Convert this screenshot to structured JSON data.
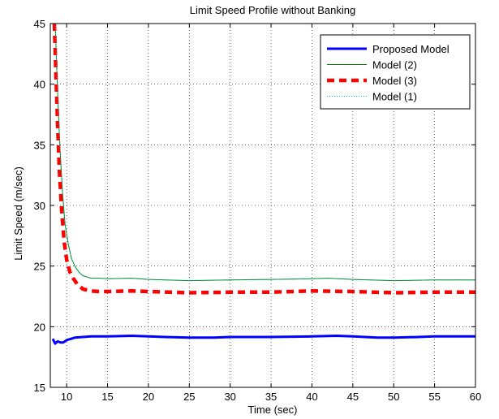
{
  "chart_data": {
    "type": "line",
    "title": "Limit Speed Profile without Banking",
    "xlabel": "Time (sec)",
    "ylabel": "Limit Speed (m/sec)",
    "xlim": [
      8,
      60
    ],
    "ylim": [
      15,
      45
    ],
    "xticks": [
      "10",
      "15",
      "20",
      "25",
      "30",
      "35",
      "40",
      "45",
      "50",
      "55",
      "60"
    ],
    "yticks": [
      "15",
      "20",
      "25",
      "30",
      "35",
      "40",
      "45"
    ],
    "grid": true,
    "legend_position": "top-right",
    "series": [
      {
        "name": "Proposed Model",
        "color": "#0000ff",
        "style": "solid-thick",
        "x": [
          8.3,
          8.6,
          8.9,
          9.2,
          9.6,
          10.0,
          10.5,
          11,
          12,
          13,
          15,
          18,
          20,
          22,
          25,
          28,
          30,
          35,
          40,
          43,
          45,
          48,
          50,
          53,
          55,
          58,
          60
        ],
        "y": [
          19.0,
          18.6,
          18.8,
          18.7,
          18.7,
          18.9,
          19.0,
          19.1,
          19.15,
          19.2,
          19.2,
          19.25,
          19.2,
          19.15,
          19.1,
          19.1,
          19.15,
          19.15,
          19.2,
          19.25,
          19.2,
          19.1,
          19.1,
          19.15,
          19.2,
          19.2,
          19.2
        ]
      },
      {
        "name": "Model (2)",
        "color": "#008000",
        "style": "solid-thin",
        "x": [
          8.6,
          8.8,
          9.0,
          9.2,
          9.5,
          9.8,
          10.2,
          10.6,
          11.0,
          11.5,
          12,
          13,
          14,
          15,
          18,
          20,
          25,
          30,
          35,
          40,
          42,
          45,
          50,
          55,
          60
        ],
        "y": [
          45.0,
          41.0,
          37.5,
          34.5,
          31.0,
          28.5,
          26.8,
          25.6,
          25.0,
          24.5,
          24.2,
          24.0,
          24.0,
          23.95,
          24.0,
          23.9,
          23.8,
          23.85,
          23.9,
          23.95,
          24.0,
          23.9,
          23.8,
          23.85,
          23.85
        ]
      },
      {
        "name": "Model (3)",
        "color": "#ff0000",
        "style": "dashed-thick",
        "x": [
          8.5,
          8.7,
          8.9,
          9.1,
          9.4,
          9.7,
          10.0,
          10.4,
          10.8,
          11.3,
          12,
          13,
          14,
          15,
          18,
          20,
          25,
          30,
          35,
          40,
          45,
          50,
          55,
          60
        ],
        "y": [
          45.0,
          40.5,
          36.5,
          33.0,
          29.5,
          27.0,
          25.5,
          24.5,
          24.0,
          23.5,
          23.1,
          22.95,
          22.9,
          22.9,
          22.95,
          22.9,
          22.8,
          22.85,
          22.85,
          22.95,
          22.9,
          22.8,
          22.85,
          22.85
        ]
      },
      {
        "name": "Model (1)",
        "color": "#00bfbf",
        "style": "dotted",
        "x": [
          8.6,
          8.8,
          9.0,
          9.2,
          9.5,
          9.8,
          10.2,
          10.6,
          11.0,
          11.5,
          12,
          13,
          14,
          15,
          18,
          20,
          25,
          30,
          35,
          40,
          42,
          45,
          50,
          55,
          60
        ],
        "y": [
          45.0,
          41.0,
          37.5,
          34.5,
          31.0,
          28.5,
          26.8,
          25.6,
          25.0,
          24.5,
          24.2,
          24.0,
          24.0,
          23.95,
          24.0,
          23.9,
          23.8,
          23.85,
          23.9,
          23.95,
          24.0,
          23.9,
          23.8,
          23.85,
          23.85
        ]
      }
    ]
  }
}
